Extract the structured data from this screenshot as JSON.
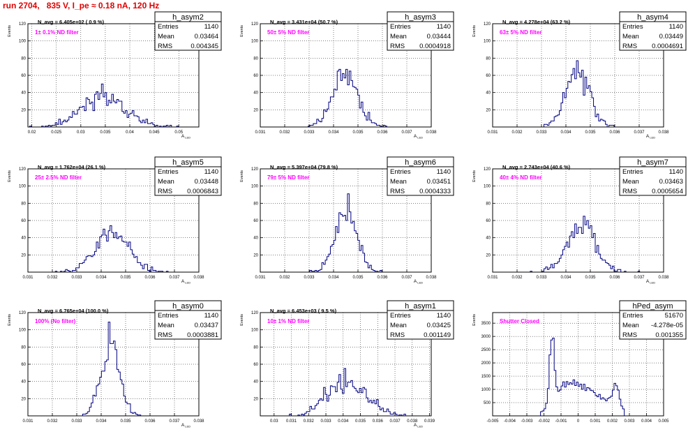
{
  "run_title": "run 2704,   835 V, I_pe ≈ 0.18 nA, 120 Hz",
  "colors": {
    "histogram": "#000080",
    "filter_label": "#ff00ff",
    "title": "#e00000",
    "grid": "#000000"
  },
  "chart_data": [
    {
      "type": "histogram",
      "name": "h_asym2",
      "navg": "N_avg = 6.405e+02 ( 0.9 %)",
      "label": "1± 0.1% ND filter",
      "stats": {
        "entries_label": "Entries",
        "entries": "1140",
        "mean_label": "Mean",
        "mean": "0.03464",
        "rms_label": "RMS",
        "rms": "0.004345"
      },
      "ylabel": "Events",
      "xlabel": "A",
      "xlim": [
        0.0192,
        0.0541
      ],
      "ylim": [
        0,
        120
      ],
      "xticks": [
        "0.02",
        "0.025",
        "0.03",
        "0.035",
        "0.04",
        "0.045",
        "0.05"
      ],
      "yticks": [
        "20",
        "40",
        "60",
        "80",
        "100",
        "120"
      ],
      "grid": true,
      "dist": "gauss",
      "mu": 0.03464,
      "sigma": 0.004345,
      "n": 1140,
      "nbins": 100,
      "seed": 11
    },
    {
      "type": "histogram",
      "name": "h_asym3",
      "navg": "N_avg = 3.431e+04 (50.7 %)",
      "label": "50± 5% ND filter",
      "stats": {
        "entries_label": "Entries",
        "entries": "1140",
        "mean_label": "Mean",
        "mean": "0.03444",
        "rms_label": "RMS",
        "rms": "0.0004918"
      },
      "ylabel": "Events",
      "xlabel": "A",
      "xlim": [
        0.031,
        0.038
      ],
      "ylim": [
        0,
        120
      ],
      "xticks": [
        "0.031",
        "0.032",
        "0.033",
        "0.034",
        "0.035",
        "0.036",
        "0.037",
        "0.038"
      ],
      "yticks": [
        "20",
        "40",
        "60",
        "80",
        "100",
        "120"
      ],
      "grid": true,
      "dist": "gauss",
      "mu": 0.03444,
      "sigma": 0.0004918,
      "n": 1140,
      "nbins": 100,
      "seed": 23
    },
    {
      "type": "histogram",
      "name": "h_asym4",
      "navg": "N_avg = 4.278e+04 (63.2 %)",
      "label": "63± 5% ND filter",
      "stats": {
        "entries_label": "Entries",
        "entries": "1140",
        "mean_label": "Mean",
        "mean": "0.03449",
        "rms_label": "RMS",
        "rms": "0.0004691"
      },
      "ylabel": "Events",
      "xlabel": "A",
      "xlim": [
        0.031,
        0.038
      ],
      "ylim": [
        0,
        120
      ],
      "xticks": [
        "0.031",
        "0.032",
        "0.033",
        "0.034",
        "0.035",
        "0.036",
        "0.037",
        "0.038"
      ],
      "yticks": [
        "20",
        "40",
        "60",
        "80",
        "100",
        "120"
      ],
      "grid": true,
      "dist": "gauss",
      "mu": 0.03449,
      "sigma": 0.0004691,
      "n": 1140,
      "nbins": 100,
      "seed": 37
    },
    {
      "type": "histogram",
      "name": "h_asym5",
      "navg": "N_avg = 1.762e+04 (26.1 %)",
      "label": "25± 2.5% ND filter",
      "stats": {
        "entries_label": "Entries",
        "entries": "1140",
        "mean_label": "Mean",
        "mean": "0.03448",
        "rms_label": "RMS",
        "rms": "0.0006843"
      },
      "ylabel": "Events",
      "xlabel": "A",
      "xlim": [
        0.031,
        0.038
      ],
      "ylim": [
        0,
        120
      ],
      "xticks": [
        "0.031",
        "0.032",
        "0.033",
        "0.034",
        "0.035",
        "0.036",
        "0.037",
        "0.038"
      ],
      "yticks": [
        "20",
        "40",
        "60",
        "80",
        "100",
        "120"
      ],
      "grid": true,
      "dist": "gauss",
      "mu": 0.03448,
      "sigma": 0.0006843,
      "n": 1140,
      "nbins": 100,
      "seed": 41
    },
    {
      "type": "histogram",
      "name": "h_asym6",
      "navg": "N_avg = 5.397e+04 (79.8 %)",
      "label": "79± 5% ND filter",
      "stats": {
        "entries_label": "Entries",
        "entries": "1140",
        "mean_label": "Mean",
        "mean": "0.03451",
        "rms_label": "RMS",
        "rms": "0.0004333"
      },
      "ylabel": "Events",
      "xlabel": "A",
      "xlim": [
        0.031,
        0.038
      ],
      "ylim": [
        0,
        120
      ],
      "xticks": [
        "0.031",
        "0.032",
        "0.033",
        "0.034",
        "0.035",
        "0.036",
        "0.037",
        "0.038"
      ],
      "yticks": [
        "20",
        "40",
        "60",
        "80",
        "100",
        "120"
      ],
      "grid": true,
      "dist": "gauss",
      "mu": 0.03451,
      "sigma": 0.0004333,
      "n": 1140,
      "nbins": 100,
      "seed": 53
    },
    {
      "type": "histogram",
      "name": "h_asym7",
      "navg": "N_avg = 2.743e+04 (40.6 %)",
      "label": "40± 4% ND filter",
      "stats": {
        "entries_label": "Entries",
        "entries": "1140",
        "mean_label": "Mean",
        "mean": "0.03463",
        "rms_label": "RMS",
        "rms": "0.0005654"
      },
      "ylabel": "Events",
      "xlabel": "A",
      "xlim": [
        0.031,
        0.038
      ],
      "ylim": [
        0,
        120
      ],
      "xticks": [
        "0.031",
        "0.032",
        "0.033",
        "0.034",
        "0.035",
        "0.036",
        "0.037",
        "0.038"
      ],
      "yticks": [
        "20",
        "40",
        "60",
        "80",
        "100",
        "120"
      ],
      "grid": true,
      "dist": "gauss",
      "mu": 0.03463,
      "sigma": 0.0005654,
      "n": 1140,
      "nbins": 100,
      "seed": 67
    },
    {
      "type": "histogram",
      "name": "h_asym0",
      "navg": "N_avg = 6.765e+04 (100.0 %)",
      "label": "100% (No filter)",
      "stats": {
        "entries_label": "Entries",
        "entries": "1140",
        "mean_label": "Mean",
        "mean": "0.03437",
        "rms_label": "RMS",
        "rms": "0.0003881"
      },
      "ylabel": "Events",
      "xlabel": "A",
      "xlim": [
        0.031,
        0.038
      ],
      "ylim": [
        0,
        120
      ],
      "xticks": [
        "0.031",
        "0.032",
        "0.033",
        "0.034",
        "0.035",
        "0.036",
        "0.037",
        "0.038"
      ],
      "yticks": [
        "20",
        "40",
        "60",
        "80",
        "100",
        "120"
      ],
      "grid": true,
      "dist": "gauss",
      "mu": 0.03437,
      "sigma": 0.0003881,
      "n": 1140,
      "nbins": 100,
      "seed": 79
    },
    {
      "type": "histogram",
      "name": "h_asym1",
      "navg": "N_avg = 6.453e+03 ( 9.5 %)",
      "label": "10± 1% ND filter",
      "stats": {
        "entries_label": "Entries",
        "entries": "1140",
        "mean_label": "Mean",
        "mean": "0.03425",
        "rms_label": "RMS",
        "rms": "0.001149"
      },
      "ylabel": "Events",
      "xlabel": "A",
      "xlim": [
        0.0292,
        0.0391
      ],
      "ylim": [
        0,
        120
      ],
      "xticks": [
        "0.03",
        "0.031",
        "0.032",
        "0.033",
        "0.034",
        "0.035",
        "0.036",
        "0.037",
        "0.038",
        "0.039"
      ],
      "yticks": [
        "20",
        "40",
        "60",
        "80",
        "100",
        "120"
      ],
      "grid": true,
      "dist": "gauss",
      "mu": 0.03425,
      "sigma": 0.001149,
      "n": 1140,
      "nbins": 100,
      "seed": 83
    },
    {
      "type": "histogram",
      "name": "hPed_asym",
      "navg": "",
      "label": "Shutter Closed",
      "stats": {
        "entries_label": "Entries",
        "entries": "51670",
        "mean_label": "Mean",
        "mean": "-4.278e-05",
        "rms_label": "RMS",
        "rms": "0.001355"
      },
      "ylabel": "Events",
      "xlabel": "",
      "xlim": [
        -0.005,
        0.005
      ],
      "ylim": [
        0,
        3900
      ],
      "xticks": [
        "-0.005",
        "-0.004",
        "-0.003",
        "-0.002",
        "-0.001",
        "0",
        "0.001",
        "0.002",
        "0.003",
        "0.004",
        "0.005"
      ],
      "yticks": [
        "500",
        "1000",
        "1500",
        "2000",
        "2500",
        "3000",
        "3500"
      ],
      "grid": true,
      "dist": "ped",
      "n": 51670,
      "nbins": 100,
      "seed": 97
    }
  ]
}
